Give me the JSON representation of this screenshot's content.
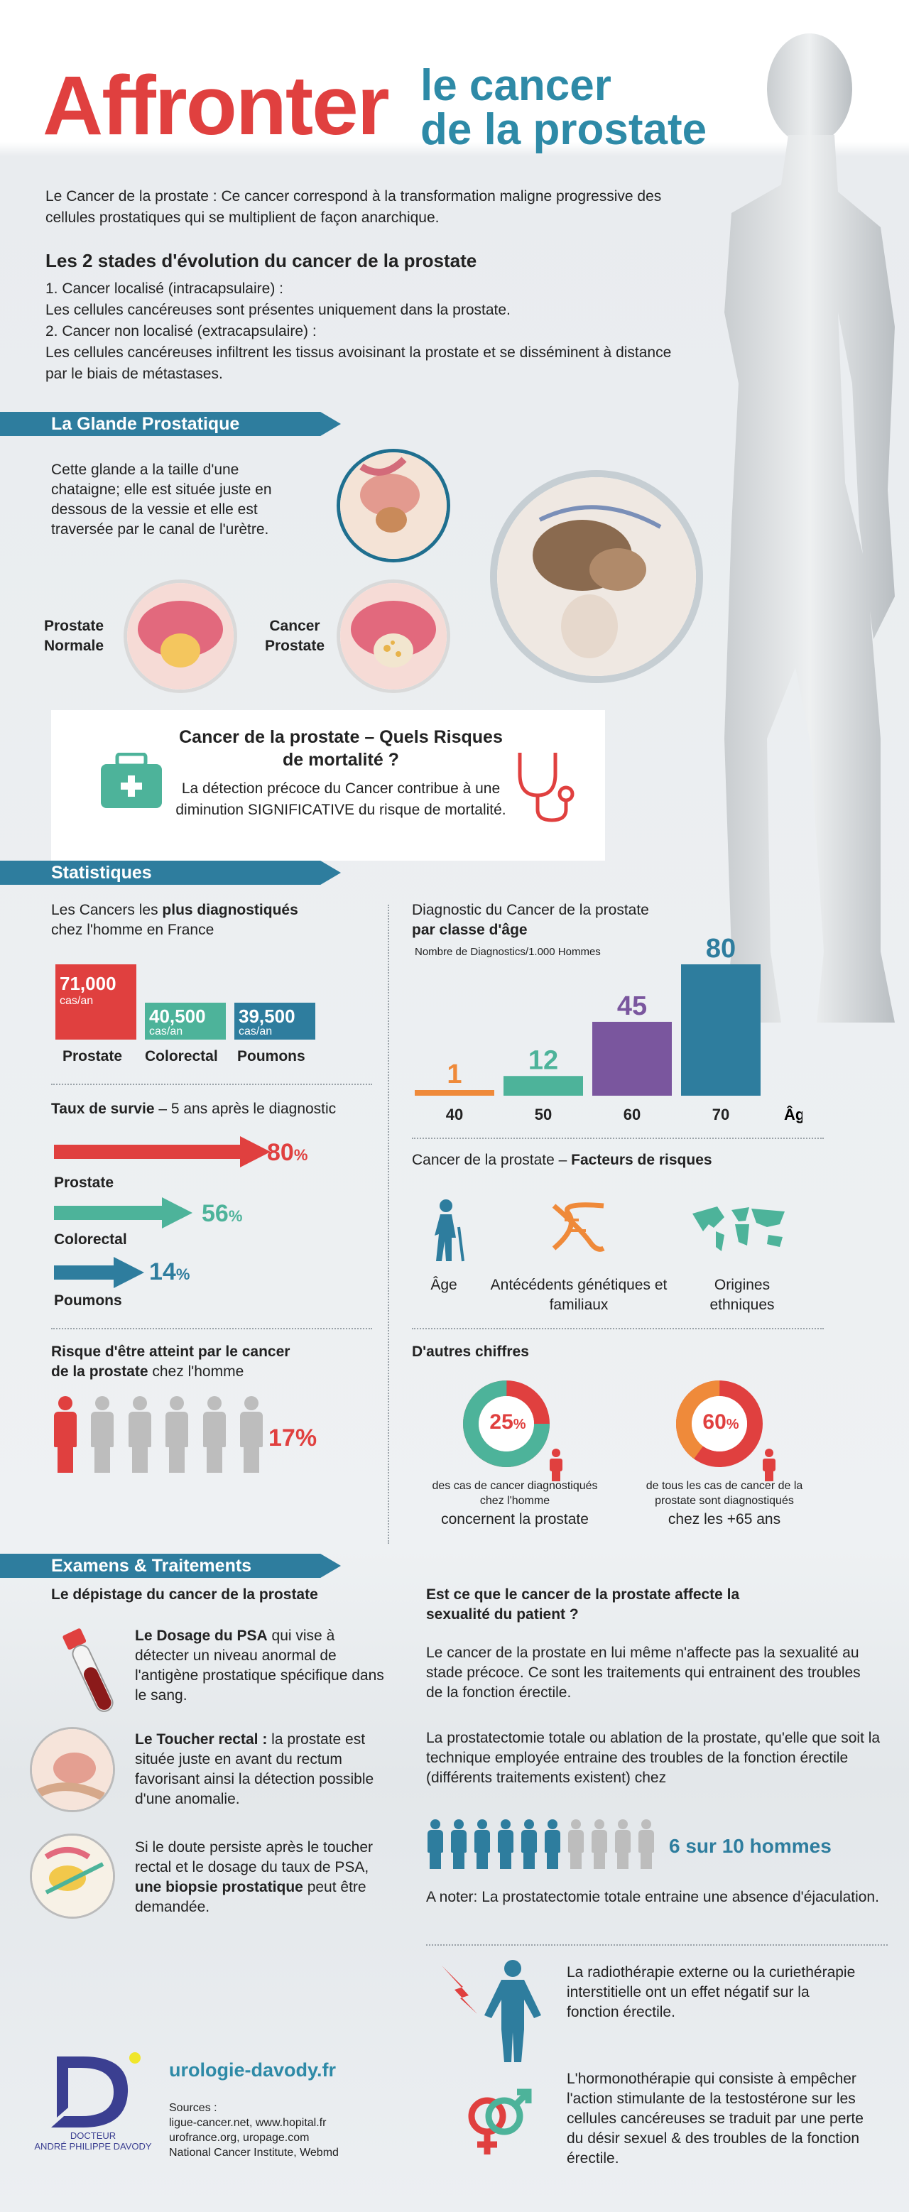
{
  "title": {
    "main": "Affronter",
    "line1": "le cancer",
    "line2": "de la prostate"
  },
  "intro": "Le Cancer de la prostate : Ce cancer correspond à la transformation maligne progressive des cellules prostatiques qui se multiplient de façon anarchique.",
  "stages": {
    "title": "Les 2 stades d'évolution du cancer de la prostate",
    "s1_title": "1. Cancer localisé (intracapsulaire) :",
    "s1_text": "Les cellules cancéreuses sont présentes uniquement dans la prostate.",
    "s2_title": "2. Cancer non localisé (extracapsulaire) :",
    "s2_text": "Les cellules cancéreuses infiltrent les tissus avoisinant la prostate et se disséminent à distance par le biais de métastases."
  },
  "gland": {
    "banner": "La Glande Prostatique",
    "text": "Cette glande a la taille d'une chataigne; elle est située juste en dessous de la vessie et elle est traversée par le canal de l'urètre.",
    "normal_label": "Prostate Normale",
    "cancer_label": "Cancer Prostate"
  },
  "mortality": {
    "title": "Cancer de la prostate – Quels Risques de mortalité ?",
    "text": "La détection précoce du Cancer contribue à une diminution SIGNIFICATIVE du risque de mortalité."
  },
  "stats": {
    "banner": "Statistiques",
    "diag_title_a": "Les Cancers les ",
    "diag_title_b": "plus diagnostiqués",
    "diag_title_c": "chez l'homme en France",
    "unit": "cas/an",
    "cancers": [
      {
        "name": "Prostate",
        "value": "71,000",
        "color": "#e0403f"
      },
      {
        "name": "Colorectal",
        "value": "40,500",
        "color": "#4db39a"
      },
      {
        "name": "Poumons",
        "value": "39,500",
        "color": "#2e7d9e"
      }
    ],
    "survival_title_a": "Taux de survie",
    "survival_title_b": " – 5 ans après le diagnostic",
    "survival": [
      {
        "name": "Prostate",
        "pct": "80",
        "color": "#e0403f"
      },
      {
        "name": "Colorectal",
        "pct": "56",
        "color": "#4db39a"
      },
      {
        "name": "Poumons",
        "pct": "14",
        "color": "#2e7d9e"
      }
    ],
    "pct_sign": "%",
    "risk_title_a": "Risque d'être atteint par le cancer",
    "risk_title_b": "de la prostate",
    "risk_title_c": " chez l'homme",
    "risk_value": "17%",
    "age_title_a": "Diagnostic du Cancer de la prostate",
    "age_title_b": "par classe d'âge",
    "age_sub": "Nombre de Diagnostics/1.000 Hommes",
    "age_axis": "Âge",
    "factors_title_a": "Cancer de la prostate – ",
    "factors_title_b": "Facteurs de risques",
    "factors": [
      "Âge",
      "Antécédents génétiques et familiaux",
      "Origines ethniques"
    ],
    "other_title": "D'autres chiffres",
    "donut1": {
      "value": "25",
      "text": "des cas de cancer diagnostiqués chez l'homme",
      "text2": "concernent la prostate",
      "color": "#4db39a"
    },
    "donut2": {
      "value": "60",
      "text": "de tous les cas de cancer de la prostate sont diagnostiqués",
      "text2": "chez les +65 ans",
      "color": "#ef8a3a"
    }
  },
  "chart_data": {
    "type": "bar",
    "title": "Diagnostic du Cancer de la prostate par classe d'âge",
    "ylabel": "Nombre de Diagnostics/1.000 Hommes",
    "xlabel": "Âge",
    "categories": [
      "40",
      "50",
      "60",
      "70"
    ],
    "values": [
      1,
      12,
      45,
      80
    ],
    "colors": [
      "#ef8a3a",
      "#4db39a",
      "#7a569e",
      "#2e7d9e"
    ],
    "ylim": [
      0,
      80
    ]
  },
  "exams": {
    "banner": "Examens & Traitements",
    "depist_title": "Le dépistage du cancer de la prostate",
    "psa_bold": "Le Dosage du PSA",
    "psa_text": " qui vise à détecter un niveau anormal de l'antigène prostatique spécifique dans le sang.",
    "toucher_bold": "Le Toucher rectal :",
    "toucher_text": " la prostate est située juste en avant du rectum favorisant ainsi la détection possible d'une anomalie.",
    "biopsie_text": "Si le doute persiste après le toucher rectal et le dosage du taux de PSA, ",
    "biopsie_bold": "une biopsie prostatique",
    "biopsie_end": " peut être demandée.",
    "sex_title": "Est ce que le cancer de la prostate affecte la sexualité du patient ?",
    "sex_p1": "Le cancer de la prostate en lui même n'affecte pas la sexualité au stade précoce. Ce sont les traitements qui entrainent des troubles de la fonction érectile.",
    "sex_p2": "La prostatectomie totale ou ablation de la prostate, qu'elle que soit la technique employée entraine des troubles de la fonction érectile (différents traitements existent) chez",
    "ratio": "6 sur 10 hommes",
    "ratio_value": 0.6,
    "note": "A noter: La prostatectomie totale entraine une absence d'éjaculation.",
    "radio": "La radiothérapie externe ou la curiethérapie interstitielle ont un effet négatif sur la fonction érectile.",
    "hormono": "L'hormonothérapie qui consiste à empêcher l'action stimulante de la testostérone sur les cellules cancéreuses se traduit par une perte du désir sexuel & des troubles de la fonction érectile."
  },
  "footer": {
    "logo_line1": "DOCTEUR",
    "logo_line2": "ANDRÉ PHILIPPE DAVODY",
    "site": "urologie-davody.fr",
    "sources_title": "Sources :",
    "sources": [
      "ligue-cancer.net, www.hopital.fr",
      "urofrance.org, uropage.com",
      "National Cancer Institute, Webmd"
    ]
  }
}
